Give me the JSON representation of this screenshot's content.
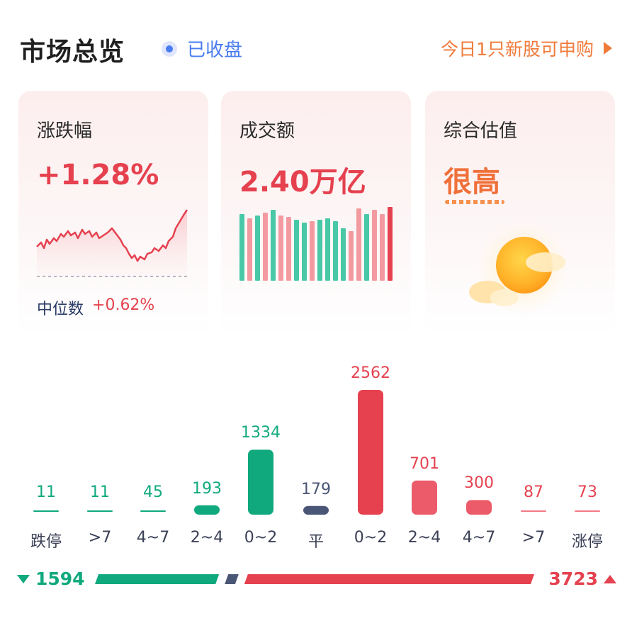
{
  "header": {
    "title": "市场总览",
    "status": "已收盘",
    "ipo_text": "今日1只新股可申购"
  },
  "cards": {
    "change": {
      "label": "涨跌幅",
      "value": "+1.28%",
      "median_label": "中位数",
      "median_value": "+0.62%"
    },
    "turnover": {
      "label": "成交额",
      "value": "2.40万亿"
    },
    "valuation": {
      "label": "综合估值",
      "value": "很高"
    }
  },
  "colors": {
    "up": "#e5414f",
    "down": "#10a97e",
    "flat": "#4a5676",
    "accent": "#f07a3a",
    "status": "#4a7cf0"
  },
  "distribution": {
    "categories": [
      "跌停",
      ">7",
      "4~7",
      "2~4",
      "0~2",
      "平",
      "0~2",
      "2~4",
      "4~7",
      ">7",
      "涨停"
    ],
    "values": [
      11,
      11,
      45,
      193,
      1334,
      179,
      2562,
      701,
      300,
      87,
      73
    ],
    "labels": [
      "11",
      "11",
      "45",
      "193",
      "1334",
      "179",
      "2562",
      "701",
      "300",
      "87",
      "73"
    ],
    "kinds": [
      "down",
      "down",
      "down",
      "down",
      "down",
      "flat",
      "up",
      "up",
      "up",
      "up",
      "up"
    ]
  },
  "summary": {
    "down": "1594",
    "up": "3723",
    "down_value": 1594,
    "flat_value": 179,
    "up_value": 3723
  },
  "icons": {
    "status": "status-dot-icon",
    "ipo": "play-arrow-icon",
    "valuation": "sun-icon",
    "down": "down-arrow-icon",
    "up": "up-arrow-icon"
  }
}
